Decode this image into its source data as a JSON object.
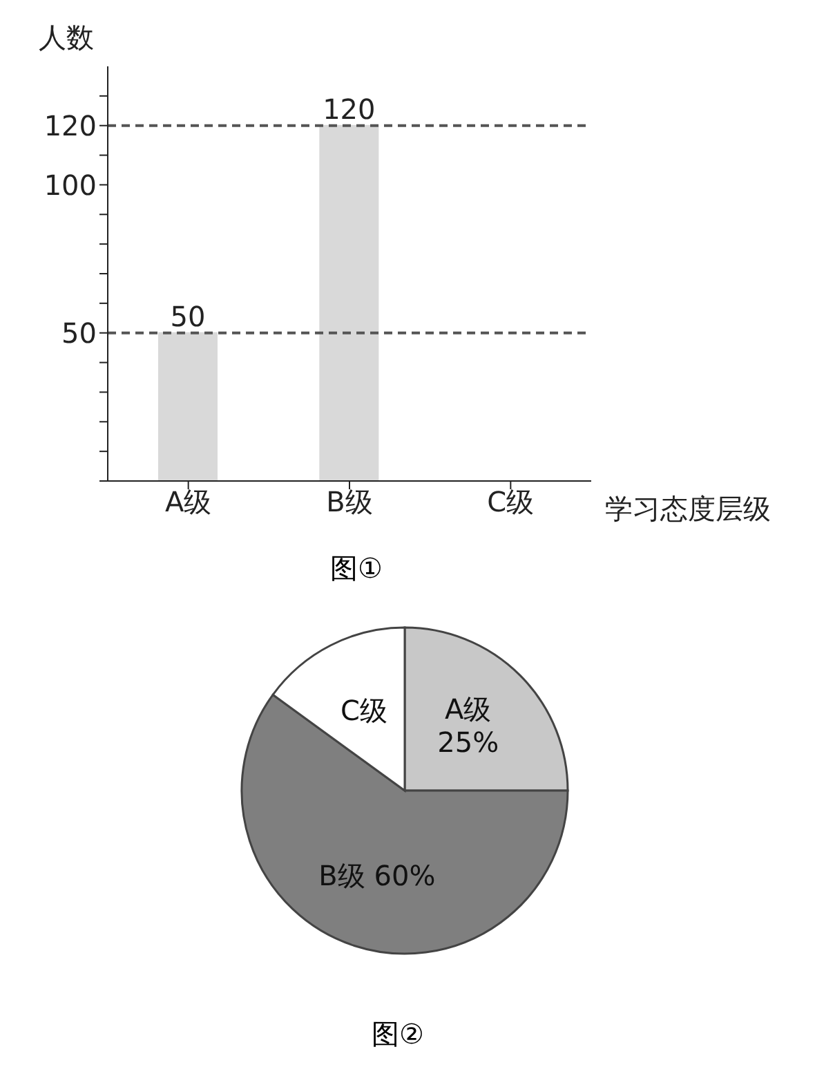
{
  "chart_data": [
    {
      "type": "bar",
      "title": "图①",
      "xlabel": "学习态度层级",
      "ylabel": "人数",
      "categories": [
        "A级",
        "B级",
        "C级"
      ],
      "values": [
        50,
        120,
        null
      ],
      "color": "#d9d9d9",
      "ylim": [
        0,
        140
      ],
      "yticks": [
        {
          "value": 0,
          "label": null
        },
        {
          "value": 10,
          "label": null
        },
        {
          "value": 20,
          "label": null
        },
        {
          "value": 30,
          "label": null
        },
        {
          "value": 40,
          "label": null
        },
        50,
        {
          "value": 60,
          "label": null
        },
        {
          "value": 70,
          "label": null
        },
        {
          "value": 80,
          "label": null
        },
        {
          "value": 90,
          "label": null
        },
        100,
        {
          "value": 110,
          "label": null
        },
        120,
        {
          "value": 130,
          "label": null
        }
      ],
      "data_labels": true,
      "ref_lines": [
        {
          "axis": "y",
          "value": 50,
          "line_style": "dashed",
          "color": "#555555"
        },
        {
          "axis": "y",
          "value": 120,
          "line_style": "dashed",
          "color": "#555555"
        }
      ]
    },
    {
      "type": "pie",
      "title": "图②",
      "categories": [
        "A级",
        "B级",
        "C级"
      ],
      "values": [
        25,
        60,
        15
      ],
      "colors": [
        "#c8c8c8",
        "#7f7f7f",
        "#ffffff"
      ],
      "value_labels": [
        "25%",
        "60%",
        null
      ]
    }
  ]
}
